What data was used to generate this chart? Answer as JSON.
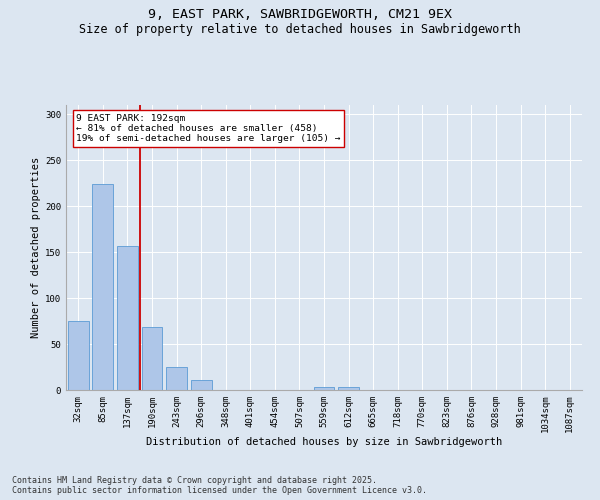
{
  "title_line1": "9, EAST PARK, SAWBRIDGEWORTH, CM21 9EX",
  "title_line2": "Size of property relative to detached houses in Sawbridgeworth",
  "xlabel": "Distribution of detached houses by size in Sawbridgeworth",
  "ylabel": "Number of detached properties",
  "categories": [
    "32sqm",
    "85sqm",
    "137sqm",
    "190sqm",
    "243sqm",
    "296sqm",
    "348sqm",
    "401sqm",
    "454sqm",
    "507sqm",
    "559sqm",
    "612sqm",
    "665sqm",
    "718sqm",
    "770sqm",
    "823sqm",
    "876sqm",
    "928sqm",
    "981sqm",
    "1034sqm",
    "1087sqm"
  ],
  "values": [
    75,
    224,
    157,
    68,
    25,
    11,
    0,
    0,
    0,
    0,
    3,
    3,
    0,
    0,
    0,
    0,
    0,
    0,
    0,
    0,
    0
  ],
  "bar_color": "#aec6e8",
  "bar_edge_color": "#5b9bd5",
  "vline_x_idx": 3,
  "vline_color": "#cc0000",
  "annotation_line1": "9 EAST PARK: 192sqm",
  "annotation_line2": "← 81% of detached houses are smaller (458)",
  "annotation_line3": "19% of semi-detached houses are larger (105) →",
  "annotation_box_color": "#cc0000",
  "bg_color": "#dce6f1",
  "plot_bg_color": "#dce6f1",
  "footer_line1": "Contains HM Land Registry data © Crown copyright and database right 2025.",
  "footer_line2": "Contains public sector information licensed under the Open Government Licence v3.0.",
  "ylim": [
    0,
    310
  ],
  "yticks": [
    0,
    50,
    100,
    150,
    200,
    250,
    300
  ],
  "title_fontsize": 9.5,
  "subtitle_fontsize": 8.5,
  "axis_label_fontsize": 7.5,
  "tick_fontsize": 6.5,
  "annotation_fontsize": 6.8,
  "footer_fontsize": 6.0
}
